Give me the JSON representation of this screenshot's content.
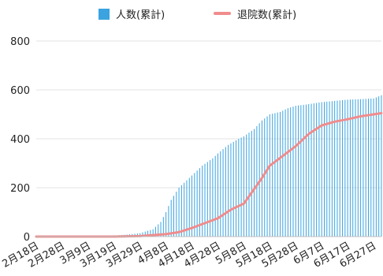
{
  "chart_data": {
    "type": "bar",
    "title": "",
    "xlabel": "",
    "ylabel": "",
    "ylim": [
      0,
      800
    ],
    "y_ticks": [
      0,
      200,
      400,
      600,
      800
    ],
    "grid": "horizontal",
    "legend_position": "top",
    "x_tick_labels": [
      "2月18日",
      "2月28日",
      "3月9日",
      "3月19日",
      "3月29日",
      "4月8日",
      "4月18日",
      "4月28日",
      "5月8日",
      "5月18日",
      "5月28日",
      "6月7日",
      "6月17日",
      "6月27日"
    ],
    "series": [
      {
        "name": "人数(累計)",
        "render": "bar",
        "color": "#3aa3e0",
        "points": [
          [
            "2020-02-18",
            0
          ],
          [
            "2020-02-28",
            0
          ],
          [
            "2020-03-09",
            1
          ],
          [
            "2020-03-19",
            4
          ],
          [
            "2020-03-24",
            8
          ],
          [
            "2020-03-29",
            14
          ],
          [
            "2020-04-03",
            30
          ],
          [
            "2020-04-06",
            60
          ],
          [
            "2020-04-08",
            100
          ],
          [
            "2020-04-10",
            150
          ],
          [
            "2020-04-13",
            200
          ],
          [
            "2020-04-16",
            230
          ],
          [
            "2020-04-18",
            250
          ],
          [
            "2020-04-22",
            290
          ],
          [
            "2020-04-26",
            320
          ],
          [
            "2020-04-28",
            340
          ],
          [
            "2020-05-02",
            375
          ],
          [
            "2020-05-06",
            400
          ],
          [
            "2020-05-08",
            410
          ],
          [
            "2020-05-12",
            440
          ],
          [
            "2020-05-15",
            475
          ],
          [
            "2020-05-18",
            500
          ],
          [
            "2020-05-22",
            510
          ],
          [
            "2020-05-25",
            525
          ],
          [
            "2020-05-28",
            535
          ],
          [
            "2020-06-01",
            540
          ],
          [
            "2020-06-07",
            550
          ],
          [
            "2020-06-12",
            555
          ],
          [
            "2020-06-17",
            560
          ],
          [
            "2020-06-22",
            562
          ],
          [
            "2020-06-27",
            565
          ],
          [
            "2020-06-30",
            578
          ]
        ]
      },
      {
        "name": "退院数(累計)",
        "render": "line",
        "color": "#f08c8c",
        "points": [
          [
            "2020-02-18",
            0
          ],
          [
            "2020-03-19",
            0
          ],
          [
            "2020-03-29",
            2
          ],
          [
            "2020-04-08",
            10
          ],
          [
            "2020-04-13",
            18
          ],
          [
            "2020-04-18",
            35
          ],
          [
            "2020-04-23",
            55
          ],
          [
            "2020-04-28",
            75
          ],
          [
            "2020-05-03",
            110
          ],
          [
            "2020-05-08",
            135
          ],
          [
            "2020-05-12",
            195
          ],
          [
            "2020-05-15",
            240
          ],
          [
            "2020-05-18",
            290
          ],
          [
            "2020-05-23",
            330
          ],
          [
            "2020-05-28",
            370
          ],
          [
            "2020-06-02",
            420
          ],
          [
            "2020-06-07",
            455
          ],
          [
            "2020-06-12",
            470
          ],
          [
            "2020-06-17",
            480
          ],
          [
            "2020-06-22",
            492
          ],
          [
            "2020-06-27",
            500
          ],
          [
            "2020-06-30",
            505
          ]
        ]
      }
    ]
  }
}
